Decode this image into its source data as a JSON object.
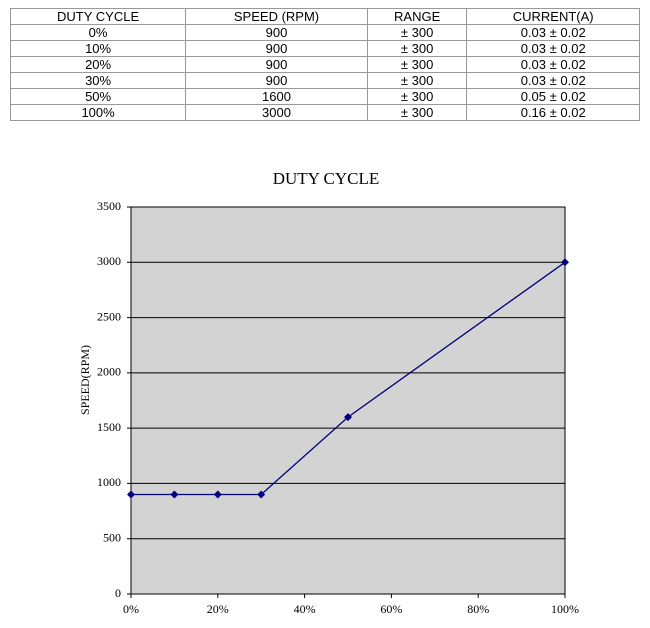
{
  "table": {
    "header": [
      "DUTY CYCLE",
      "SPEED (RPM)",
      "RANGE",
      "CURRENT(A)"
    ],
    "rows": [
      [
        "0%",
        "900",
        "± 300",
        "0.03 ± 0.02"
      ],
      [
        "10%",
        "900",
        "± 300",
        "0.03 ± 0.02"
      ],
      [
        "20%",
        "900",
        "± 300",
        "0.03 ± 0.02"
      ],
      [
        "30%",
        "900",
        "± 300",
        "0.03 ± 0.02"
      ],
      [
        "50%",
        "1600",
        "± 300",
        "0.05 ± 0.02"
      ],
      [
        "100%",
        "3000",
        "± 300",
        "0.16 ± 0.02"
      ]
    ]
  },
  "chart_data": {
    "type": "line",
    "title": "DUTY CYCLE",
    "y_label": "SPEED(RPM)",
    "x": [
      0,
      10,
      20,
      30,
      50,
      100
    ],
    "values": [
      900,
      900,
      900,
      900,
      1600,
      3000
    ],
    "color": "#000080",
    "xlim": [
      0,
      100
    ],
    "xticks": [
      {
        "value": 0,
        "label": "0%"
      },
      {
        "value": 20,
        "label": "20%"
      },
      {
        "value": 40,
        "label": "40%"
      },
      {
        "value": 60,
        "label": "60%"
      },
      {
        "value": 80,
        "label": "80%"
      },
      {
        "value": 100,
        "label": "100%"
      }
    ],
    "ylim": [
      0,
      3500
    ],
    "yticks": [
      0,
      500,
      1000,
      1500,
      2000,
      2500,
      3000,
      3500
    ],
    "grid": true
  }
}
